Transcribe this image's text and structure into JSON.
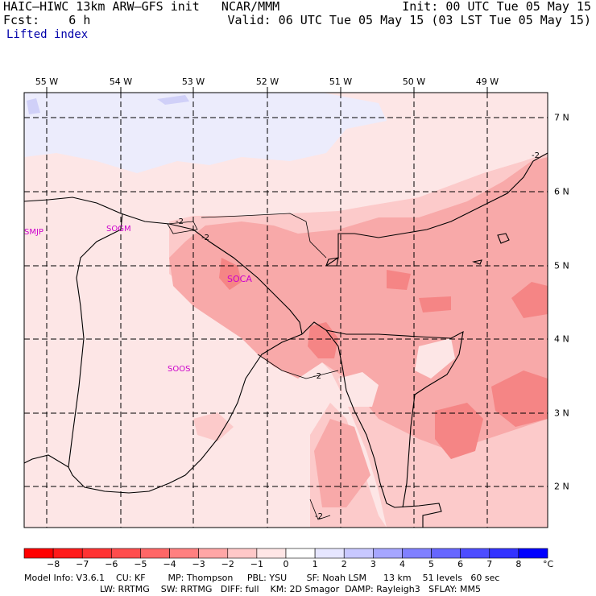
{
  "header": {
    "title_left": "HAIC–HIWC 13km ARW–GFS init   NCAR/MMM",
    "fcst_line": "Fcst:    6 h",
    "field_name": "Lifted index",
    "init_line": "Init: 00 UTC Tue 05 May 15",
    "valid_line": "Valid: 06 UTC Tue 05 May 15 (03 LST Tue 05 May 15)"
  },
  "map": {
    "lon_labels": [
      "55 W",
      "54 W",
      "53 W",
      "52 W",
      "51 W",
      "50 W",
      "49 W"
    ],
    "lat_labels": [
      "7 N",
      "6 N",
      "5 N",
      "4 N",
      "3 N",
      "2 N"
    ],
    "stations": [
      "SMJP",
      "SOGM",
      "SOCA",
      "SOOS"
    ],
    "contour_labels": [
      "-2",
      "-2",
      "-2",
      "-2",
      "-2"
    ],
    "colors": {
      "li_neg1": "#fde6e6",
      "li_neg2": "#fccaca",
      "li_neg3": "#f8a9a9",
      "li_neg4": "#f58585",
      "li_zero_pos1": "#ececfc",
      "li_pos1_pos2": "#d0d0f8"
    }
  },
  "colorbar": {
    "ticks": [
      "−8",
      "−7",
      "−6",
      "−5",
      "−4",
      "−3",
      "−2",
      "−1",
      "0",
      "1",
      "2",
      "3",
      "4",
      "5",
      "6",
      "7",
      "8"
    ],
    "unit": "°C",
    "colors": [
      "#ff0000",
      "#ff1a1a",
      "#ff3333",
      "#ff4d4d",
      "#ff6666",
      "#ff8080",
      "#ffa6a6",
      "#ffc8c8",
      "#ffe6e6",
      "#ffffff",
      "#e6e6ff",
      "#c8c8ff",
      "#a6a6ff",
      "#8080ff",
      "#6666ff",
      "#4d4dff",
      "#3333ff",
      "#0000ff"
    ]
  },
  "model_info": {
    "line1": "Model Info: V3.6.1    CU: KF        MP: Thompson     PBL: YSU       SF: Noah LSM      13 km    51 levels   60 sec",
    "line2": "LW: RRTMG    SW: RRTMG   DIFF: full    KM: 2D Smagor  DAMP: Rayleigh3   SFLAY: MM5"
  }
}
